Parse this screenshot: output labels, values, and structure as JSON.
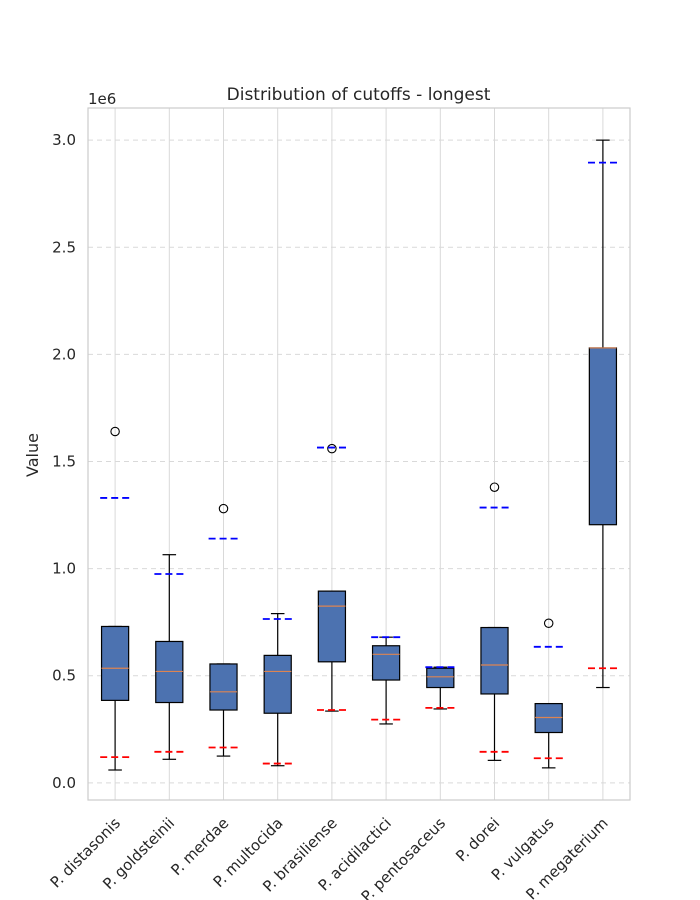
{
  "chart_data": {
    "type": "box",
    "title": "Distribution of cutoffs - longest",
    "xlabel": "",
    "ylabel": "Value",
    "y_offset_label": "1e6",
    "ylim": [
      -0.08,
      3.15
    ],
    "yticks": [
      0.0,
      0.5,
      1.0,
      1.5,
      2.0,
      2.5,
      3.0
    ],
    "ytick_labels": [
      "0.0",
      "0.5",
      "1.0",
      "1.5",
      "2.0",
      "2.5",
      "3.0"
    ],
    "grid": true,
    "box_color": "#4c72b0",
    "median_color": "#dd8452",
    "low_marker_color": "#ff0000",
    "high_marker_color": "#0000ff",
    "categories": [
      "P. distasonis",
      "P. goldsteinii",
      "P. merdae",
      "P. multocida",
      "P. brasiliense",
      "P. acidilactici",
      "P. pentosaceus",
      "P. dorei",
      "P. vulgatus",
      "P. megaterium"
    ],
    "boxes": [
      {
        "whislo": 0.06,
        "q1": 0.385,
        "med": 0.535,
        "q3": 0.73,
        "whishi": 0.73,
        "fliers": [
          1.64
        ],
        "low_marker": 0.12,
        "high_marker": 1.33
      },
      {
        "whislo": 0.11,
        "q1": 0.375,
        "med": 0.52,
        "q3": 0.66,
        "whishi": 1.065,
        "fliers": [],
        "low_marker": 0.145,
        "high_marker": 0.975
      },
      {
        "whislo": 0.125,
        "q1": 0.34,
        "med": 0.425,
        "q3": 0.555,
        "whishi": 0.555,
        "fliers": [
          1.28
        ],
        "low_marker": 0.165,
        "high_marker": 1.14
      },
      {
        "whislo": 0.08,
        "q1": 0.325,
        "med": 0.52,
        "q3": 0.595,
        "whishi": 0.79,
        "fliers": [],
        "low_marker": 0.09,
        "high_marker": 0.765
      },
      {
        "whislo": 0.335,
        "q1": 0.565,
        "med": 0.825,
        "q3": 0.895,
        "whishi": 0.895,
        "fliers": [
          1.56
        ],
        "low_marker": 0.34,
        "high_marker": 1.565
      },
      {
        "whislo": 0.275,
        "q1": 0.48,
        "med": 0.6,
        "q3": 0.64,
        "whishi": 0.68,
        "fliers": [],
        "low_marker": 0.295,
        "high_marker": 0.68
      },
      {
        "whislo": 0.345,
        "q1": 0.445,
        "med": 0.495,
        "q3": 0.535,
        "whishi": 0.54,
        "fliers": [],
        "low_marker": 0.35,
        "high_marker": 0.54
      },
      {
        "whislo": 0.105,
        "q1": 0.415,
        "med": 0.55,
        "q3": 0.725,
        "whishi": 0.725,
        "fliers": [
          1.38
        ],
        "low_marker": 0.145,
        "high_marker": 1.285
      },
      {
        "whislo": 0.07,
        "q1": 0.235,
        "med": 0.305,
        "q3": 0.37,
        "whishi": 0.37,
        "fliers": [
          0.745
        ],
        "low_marker": 0.115,
        "high_marker": 0.635
      },
      {
        "whislo": 0.445,
        "q1": 1.205,
        "med": 2.03,
        "q3": 2.03,
        "whishi": 3.0,
        "fliers": [],
        "low_marker": 0.535,
        "high_marker": 2.895
      }
    ]
  }
}
